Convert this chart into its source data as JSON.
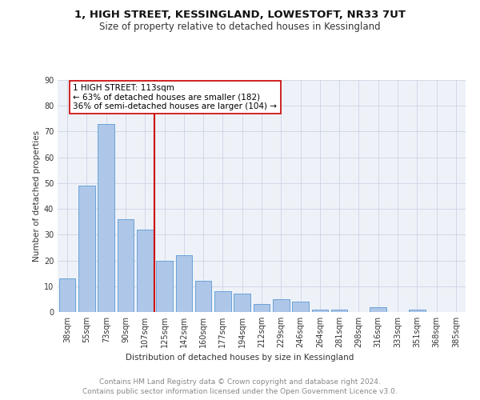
{
  "title_line1": "1, HIGH STREET, KESSINGLAND, LOWESTOFT, NR33 7UT",
  "title_line2": "Size of property relative to detached houses in Kessingland",
  "xlabel": "Distribution of detached houses by size in Kessingland",
  "ylabel": "Number of detached properties",
  "categories": [
    "38sqm",
    "55sqm",
    "73sqm",
    "90sqm",
    "107sqm",
    "125sqm",
    "142sqm",
    "160sqm",
    "177sqm",
    "194sqm",
    "212sqm",
    "229sqm",
    "246sqm",
    "264sqm",
    "281sqm",
    "298sqm",
    "316sqm",
    "333sqm",
    "351sqm",
    "368sqm",
    "385sqm"
  ],
  "values": [
    13,
    49,
    73,
    36,
    32,
    20,
    22,
    12,
    8,
    7,
    3,
    5,
    4,
    1,
    1,
    0,
    2,
    0,
    1,
    0,
    0
  ],
  "bar_color": "#aec6e8",
  "bar_edge_color": "#5b9bd5",
  "vline_x": 4.5,
  "vline_color": "#cc0000",
  "annotation_line1": "1 HIGH STREET: 113sqm",
  "annotation_line2": "← 63% of detached houses are smaller (182)",
  "annotation_line3": "36% of semi-detached houses are larger (104) →",
  "annotation_box_color": "#cc0000",
  "annotation_text_color": "#000000",
  "ylim": [
    0,
    90
  ],
  "yticks": [
    0,
    10,
    20,
    30,
    40,
    50,
    60,
    70,
    80,
    90
  ],
  "grid_color": "#d0d8e8",
  "background_color": "#eef2f8",
  "footer_line1": "Contains HM Land Registry data © Crown copyright and database right 2024.",
  "footer_line2": "Contains public sector information licensed under the Open Government Licence v3.0.",
  "title_fontsize": 9.5,
  "subtitle_fontsize": 8.5,
  "axis_label_fontsize": 7.5,
  "tick_fontsize": 7,
  "annotation_fontsize": 7.5,
  "footer_fontsize": 6.5
}
